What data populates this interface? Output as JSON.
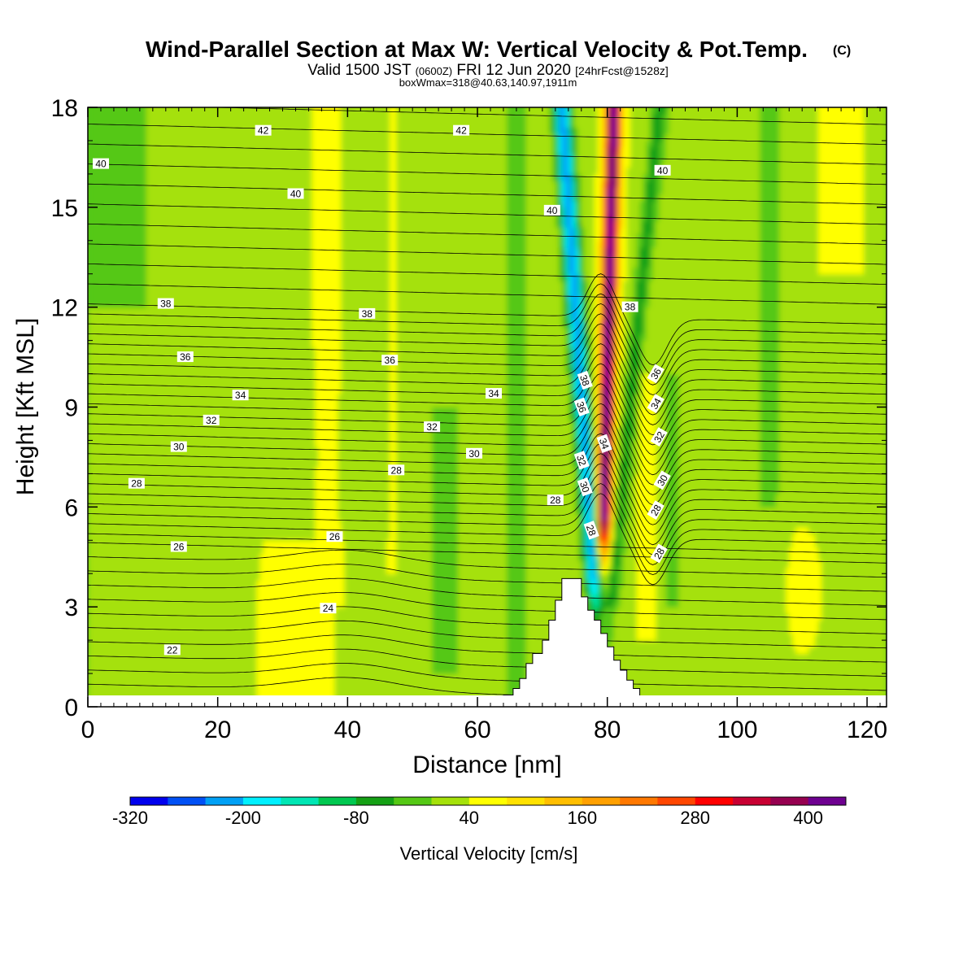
{
  "chart_data": {
    "type": "heatmap",
    "title": "Wind-Parallel Section at Max W: Vertical Velocity & Pot.Temp.",
    "title_mark": "(C)",
    "subtitle_valid": "Valid 1500 JST",
    "subtitle_z": "(0600Z)",
    "subtitle_date": "FRI 12 Jun 2020",
    "subtitle_fcst": "[24hrFcst@1528z]",
    "subtitle2": "boxWmax=318@40.63,140.97,1911m",
    "xlabel": "Distance [nm]",
    "ylabel": "Height [Kft MSL]",
    "xlim": [
      0,
      123
    ],
    "ylim": [
      0,
      18
    ],
    "x_ticks": [
      0,
      20,
      40,
      60,
      80,
      100,
      120
    ],
    "y_ticks": [
      0,
      3,
      6,
      9,
      12,
      15,
      18
    ],
    "colorbar": {
      "label": "Vertical Velocity [cm/s]",
      "levels": [
        -320,
        -280,
        -240,
        -200,
        -160,
        -120,
        -80,
        -40,
        0,
        40,
        80,
        120,
        160,
        200,
        240,
        280,
        320,
        360,
        400
      ],
      "tick_labels": [
        -320,
        -200,
        -80,
        40,
        160,
        280,
        400
      ],
      "colors": [
        "#0000ee",
        "#0050f5",
        "#00a0f5",
        "#00f0ff",
        "#00e6b4",
        "#00c850",
        "#14a014",
        "#55c814",
        "#a5e10a",
        "#ffff00",
        "#ffe100",
        "#ffbe00",
        "#ffa000",
        "#ff7800",
        "#ff4600",
        "#ff0000",
        "#c80032",
        "#960050",
        "#6e0090"
      ]
    },
    "max_updraft": {
      "x": 80,
      "value": 400
    },
    "max_downdraft": {
      "x": 76.5,
      "value": -240
    },
    "terrain_profile": [
      [
        64,
        0
      ],
      [
        64,
        0.35
      ],
      [
        65.5,
        0.35
      ],
      [
        65.5,
        0.55
      ],
      [
        66.5,
        0.55
      ],
      [
        66.5,
        0.85
      ],
      [
        67.5,
        0.85
      ],
      [
        67.5,
        1.3
      ],
      [
        68.5,
        1.3
      ],
      [
        68.5,
        1.6
      ],
      [
        70,
        1.6
      ],
      [
        70,
        2.0
      ],
      [
        71,
        2.0
      ],
      [
        71,
        2.6
      ],
      [
        72,
        2.6
      ],
      [
        72,
        3.2
      ],
      [
        73,
        3.2
      ],
      [
        73,
        3.85
      ],
      [
        76,
        3.85
      ],
      [
        76,
        3.3
      ],
      [
        77,
        3.3
      ],
      [
        77,
        2.9
      ],
      [
        78,
        2.9
      ],
      [
        78,
        2.6
      ],
      [
        79,
        2.6
      ],
      [
        79,
        2.2
      ],
      [
        80,
        2.2
      ],
      [
        80,
        1.8
      ],
      [
        81,
        1.8
      ],
      [
        81,
        1.4
      ],
      [
        82,
        1.4
      ],
      [
        82,
        1.1
      ],
      [
        83,
        1.1
      ],
      [
        83,
        0.8
      ],
      [
        84,
        0.8
      ],
      [
        84,
        0.55
      ],
      [
        85,
        0.55
      ],
      [
        85,
        0.3
      ],
      [
        89,
        0.3
      ],
      [
        89,
        0
      ],
      [
        109,
        0
      ],
      [
        109,
        0.3
      ],
      [
        110.5,
        0.3
      ],
      [
        110.5,
        0
      ]
    ],
    "theta_contours": [
      {
        "value": 22,
        "label_at": [
          13,
          1.7
        ]
      },
      {
        "value": 24,
        "label_at": [
          37,
          2.95
        ]
      },
      {
        "value": 26,
        "label_at": [
          14,
          4.8
        ],
        "label_at_2": [
          38,
          5.1
        ]
      },
      {
        "value": 28,
        "label_at": [
          7.5,
          6.7
        ],
        "label_at_2": [
          47.5,
          7.1
        ],
        "label_at_3": [
          72,
          6.2
        ]
      },
      {
        "value": 30,
        "label_at": [
          14,
          7.8
        ],
        "label_at_2": [
          59.5,
          7.6
        ]
      },
      {
        "value": 32,
        "label_at": [
          19,
          8.6
        ],
        "label_at_2": [
          53,
          8.4
        ]
      },
      {
        "value": 34,
        "label_at": [
          23.5,
          9.35
        ],
        "label_at_2": [
          62.5,
          9.4
        ]
      },
      {
        "value": 36,
        "label_at": [
          15,
          10.5
        ],
        "label_at_2": [
          46.5,
          10.4
        ]
      },
      {
        "value": 38,
        "label_at": [
          12,
          12.1
        ],
        "label_at_2": [
          43,
          11.8
        ],
        "label_at_3": [
          83.5,
          12.0
        ]
      },
      {
        "value": 40,
        "label_at": [
          2,
          16.3
        ],
        "label_at_2": [
          32,
          15.4
        ],
        "label_at_3": [
          71.5,
          14.9
        ],
        "label_at_4": [
          88.5,
          16.1
        ]
      },
      {
        "value": 42,
        "label_at": [
          27,
          17.3
        ],
        "label_at_2": [
          57.5,
          17.3
        ]
      }
    ],
    "theta_column_labels": [
      {
        "text": "38",
        "at": [
          76.5,
          9.8
        ]
      },
      {
        "text": "36",
        "at": [
          76,
          9.0
        ]
      },
      {
        "text": "34",
        "at": [
          79.5,
          7.9
        ]
      },
      {
        "text": "32",
        "at": [
          76,
          7.4
        ]
      },
      {
        "text": "30",
        "at": [
          76.5,
          6.6
        ]
      },
      {
        "text": "28",
        "at": [
          77.5,
          5.3
        ]
      },
      {
        "text": "36",
        "at": [
          87.5,
          10.0
        ]
      },
      {
        "text": "34",
        "at": [
          87.5,
          9.1
        ]
      },
      {
        "text": "32",
        "at": [
          88,
          8.1
        ]
      },
      {
        "text": "30",
        "at": [
          88.5,
          6.8
        ]
      },
      {
        "text": "28",
        "at": [
          87.5,
          5.9
        ]
      },
      {
        "text": "28",
        "at": [
          88,
          4.6
        ]
      }
    ]
  }
}
